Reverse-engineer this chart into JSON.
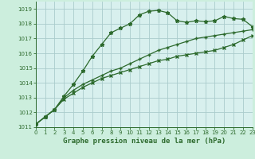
{
  "title": "Graphe pression niveau de la mer (hPa)",
  "background_color": "#cceedd",
  "plot_bg_color": "#d8f0ee",
  "grid_color": "#aacccc",
  "line_color": "#2d6a2d",
  "xlim": [
    0,
    23
  ],
  "ylim": [
    1011,
    1019.5
  ],
  "yticks": [
    1011,
    1012,
    1013,
    1014,
    1015,
    1016,
    1017,
    1018,
    1019
  ],
  "xticks": [
    0,
    1,
    2,
    3,
    4,
    5,
    6,
    7,
    8,
    9,
    10,
    11,
    12,
    13,
    14,
    15,
    16,
    17,
    18,
    19,
    20,
    21,
    22,
    23
  ],
  "series1_x": [
    0,
    1,
    2,
    3,
    4,
    5,
    6,
    7,
    8,
    9,
    10,
    11,
    12,
    13,
    14,
    15,
    16,
    17,
    18,
    19,
    20,
    21,
    22,
    23
  ],
  "series1_y": [
    1011.2,
    1011.7,
    1012.2,
    1013.1,
    1013.9,
    1014.8,
    1015.8,
    1016.6,
    1017.4,
    1017.7,
    1018.0,
    1018.6,
    1018.85,
    1018.9,
    1018.75,
    1018.2,
    1018.1,
    1018.2,
    1018.15,
    1018.2,
    1018.5,
    1018.35,
    1018.3,
    1017.8
  ],
  "series2_x": [
    0,
    1,
    2,
    3,
    4,
    5,
    6,
    7,
    8,
    9,
    10,
    11,
    12,
    13,
    14,
    15,
    16,
    17,
    18,
    19,
    20,
    21,
    22,
    23
  ],
  "series2_y": [
    1011.2,
    1011.7,
    1012.2,
    1013.0,
    1013.5,
    1013.9,
    1014.2,
    1014.5,
    1014.8,
    1015.0,
    1015.3,
    1015.6,
    1015.9,
    1016.2,
    1016.4,
    1016.6,
    1016.8,
    1017.0,
    1017.1,
    1017.2,
    1017.3,
    1017.4,
    1017.5,
    1017.6
  ],
  "series3_x": [
    0,
    1,
    2,
    3,
    4,
    5,
    6,
    7,
    8,
    9,
    10,
    11,
    12,
    13,
    14,
    15,
    16,
    17,
    18,
    19,
    20,
    21,
    22,
    23
  ],
  "series3_y": [
    1011.2,
    1011.7,
    1012.2,
    1012.9,
    1013.3,
    1013.7,
    1014.0,
    1014.3,
    1014.5,
    1014.7,
    1014.9,
    1015.1,
    1015.3,
    1015.5,
    1015.6,
    1015.8,
    1015.9,
    1016.0,
    1016.1,
    1016.2,
    1016.4,
    1016.6,
    1016.9,
    1017.2
  ]
}
